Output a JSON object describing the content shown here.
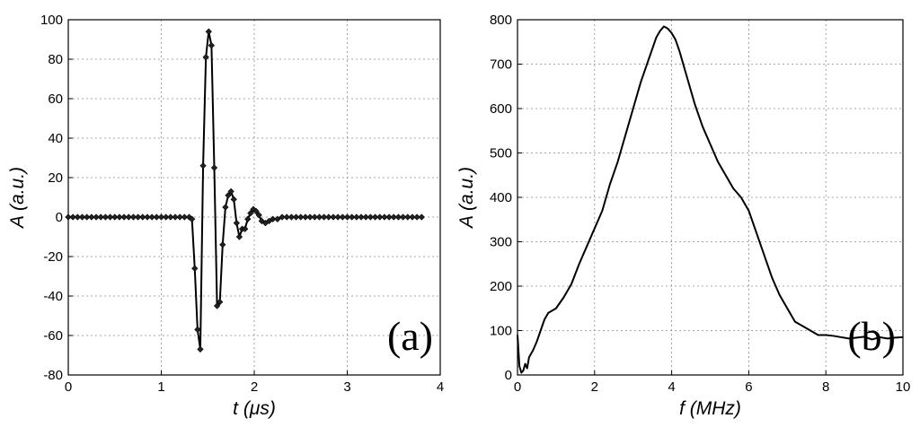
{
  "chart_data": [
    {
      "type": "line",
      "panel_label": "(a)",
      "xlabel_var": "t",
      "xlabel_unit": " (μs)",
      "ylabel_var": "A",
      "ylabel_unit": " (a.u.)",
      "xlim": [
        0,
        4
      ],
      "ylim": [
        -80,
        100
      ],
      "xticks": [
        0,
        1,
        2,
        3,
        4
      ],
      "yticks": [
        -80,
        -60,
        -40,
        -20,
        0,
        20,
        40,
        60,
        80,
        100
      ],
      "grid": true,
      "markers": true,
      "series": [
        {
          "x": [
            0.0,
            0.05,
            0.1,
            0.15,
            0.2,
            0.25,
            0.3,
            0.35,
            0.4,
            0.45,
            0.5,
            0.55,
            0.6,
            0.65,
            0.7,
            0.75,
            0.8,
            0.85,
            0.9,
            0.95,
            1.0,
            1.05,
            1.1,
            1.15,
            1.2,
            1.25,
            1.3,
            1.33,
            1.36,
            1.39,
            1.42,
            1.45,
            1.48,
            1.51,
            1.54,
            1.57,
            1.6,
            1.63,
            1.66,
            1.69,
            1.72,
            1.75,
            1.78,
            1.81,
            1.84,
            1.87,
            1.9,
            1.93,
            1.96,
            1.99,
            2.02,
            2.05,
            2.08,
            2.12,
            2.16,
            2.2,
            2.25,
            2.3,
            2.35,
            2.4,
            2.45,
            2.5,
            2.55,
            2.6,
            2.65,
            2.7,
            2.75,
            2.8,
            2.85,
            2.9,
            2.95,
            3.0,
            3.05,
            3.1,
            3.15,
            3.2,
            3.25,
            3.3,
            3.35,
            3.4,
            3.45,
            3.5,
            3.55,
            3.6,
            3.65,
            3.7,
            3.75,
            3.8
          ],
          "y": [
            0,
            0,
            0,
            0,
            0,
            0,
            0,
            0,
            0,
            0,
            0,
            0,
            0,
            0,
            0,
            0,
            0,
            0,
            0,
            0,
            0,
            0,
            0,
            0,
            0,
            0,
            0,
            -1,
            -26,
            -57,
            -67,
            26,
            81,
            94,
            87,
            25,
            -45,
            -43,
            -14,
            5,
            11,
            13,
            9,
            -3,
            -10,
            -6,
            -6,
            -1,
            2,
            4,
            3,
            1,
            -2,
            -3,
            -2,
            -1,
            -1,
            0,
            0,
            0,
            0,
            0,
            0,
            0,
            0,
            0,
            0,
            0,
            0,
            0,
            0,
            0,
            0,
            0,
            0,
            0,
            0,
            0,
            0,
            0,
            0,
            0,
            0,
            0,
            0,
            0,
            0,
            0
          ]
        }
      ]
    },
    {
      "type": "line",
      "panel_label": "(b)",
      "xlabel_var": "f",
      "xlabel_unit": " (MHz)",
      "ylabel_var": "A",
      "ylabel_unit": " (a.u.)",
      "xlim": [
        0,
        10
      ],
      "ylim": [
        0,
        800
      ],
      "xticks": [
        0,
        2,
        4,
        6,
        8,
        10
      ],
      "yticks": [
        0,
        100,
        200,
        300,
        400,
        500,
        600,
        700,
        800
      ],
      "grid": true,
      "markers": false,
      "series": [
        {
          "x": [
            0.0,
            0.05,
            0.1,
            0.15,
            0.2,
            0.25,
            0.3,
            0.4,
            0.5,
            0.6,
            0.7,
            0.8,
            0.9,
            1.0,
            1.2,
            1.4,
            1.6,
            1.8,
            2.0,
            2.2,
            2.4,
            2.6,
            2.8,
            3.0,
            3.2,
            3.4,
            3.5,
            3.6,
            3.7,
            3.8,
            3.9,
            4.0,
            4.1,
            4.2,
            4.4,
            4.6,
            4.8,
            5.0,
            5.2,
            5.4,
            5.6,
            5.8,
            6.0,
            6.2,
            6.4,
            6.6,
            6.8,
            7.0,
            7.2,
            7.4,
            7.6,
            7.8,
            8.0,
            8.2,
            8.4,
            8.6,
            8.8,
            9.0,
            9.2,
            9.4,
            9.6,
            9.8,
            10.0
          ],
          "y": [
            90,
            20,
            5,
            10,
            25,
            15,
            40,
            55,
            75,
            100,
            125,
            140,
            145,
            150,
            175,
            205,
            250,
            290,
            330,
            370,
            430,
            480,
            540,
            600,
            660,
            710,
            735,
            760,
            775,
            785,
            780,
            770,
            755,
            730,
            670,
            610,
            560,
            520,
            480,
            450,
            420,
            400,
            370,
            320,
            270,
            220,
            180,
            150,
            120,
            110,
            100,
            90,
            90,
            88,
            85,
            82,
            84,
            86,
            80,
            85,
            82,
            84,
            85
          ]
        }
      ]
    }
  ]
}
